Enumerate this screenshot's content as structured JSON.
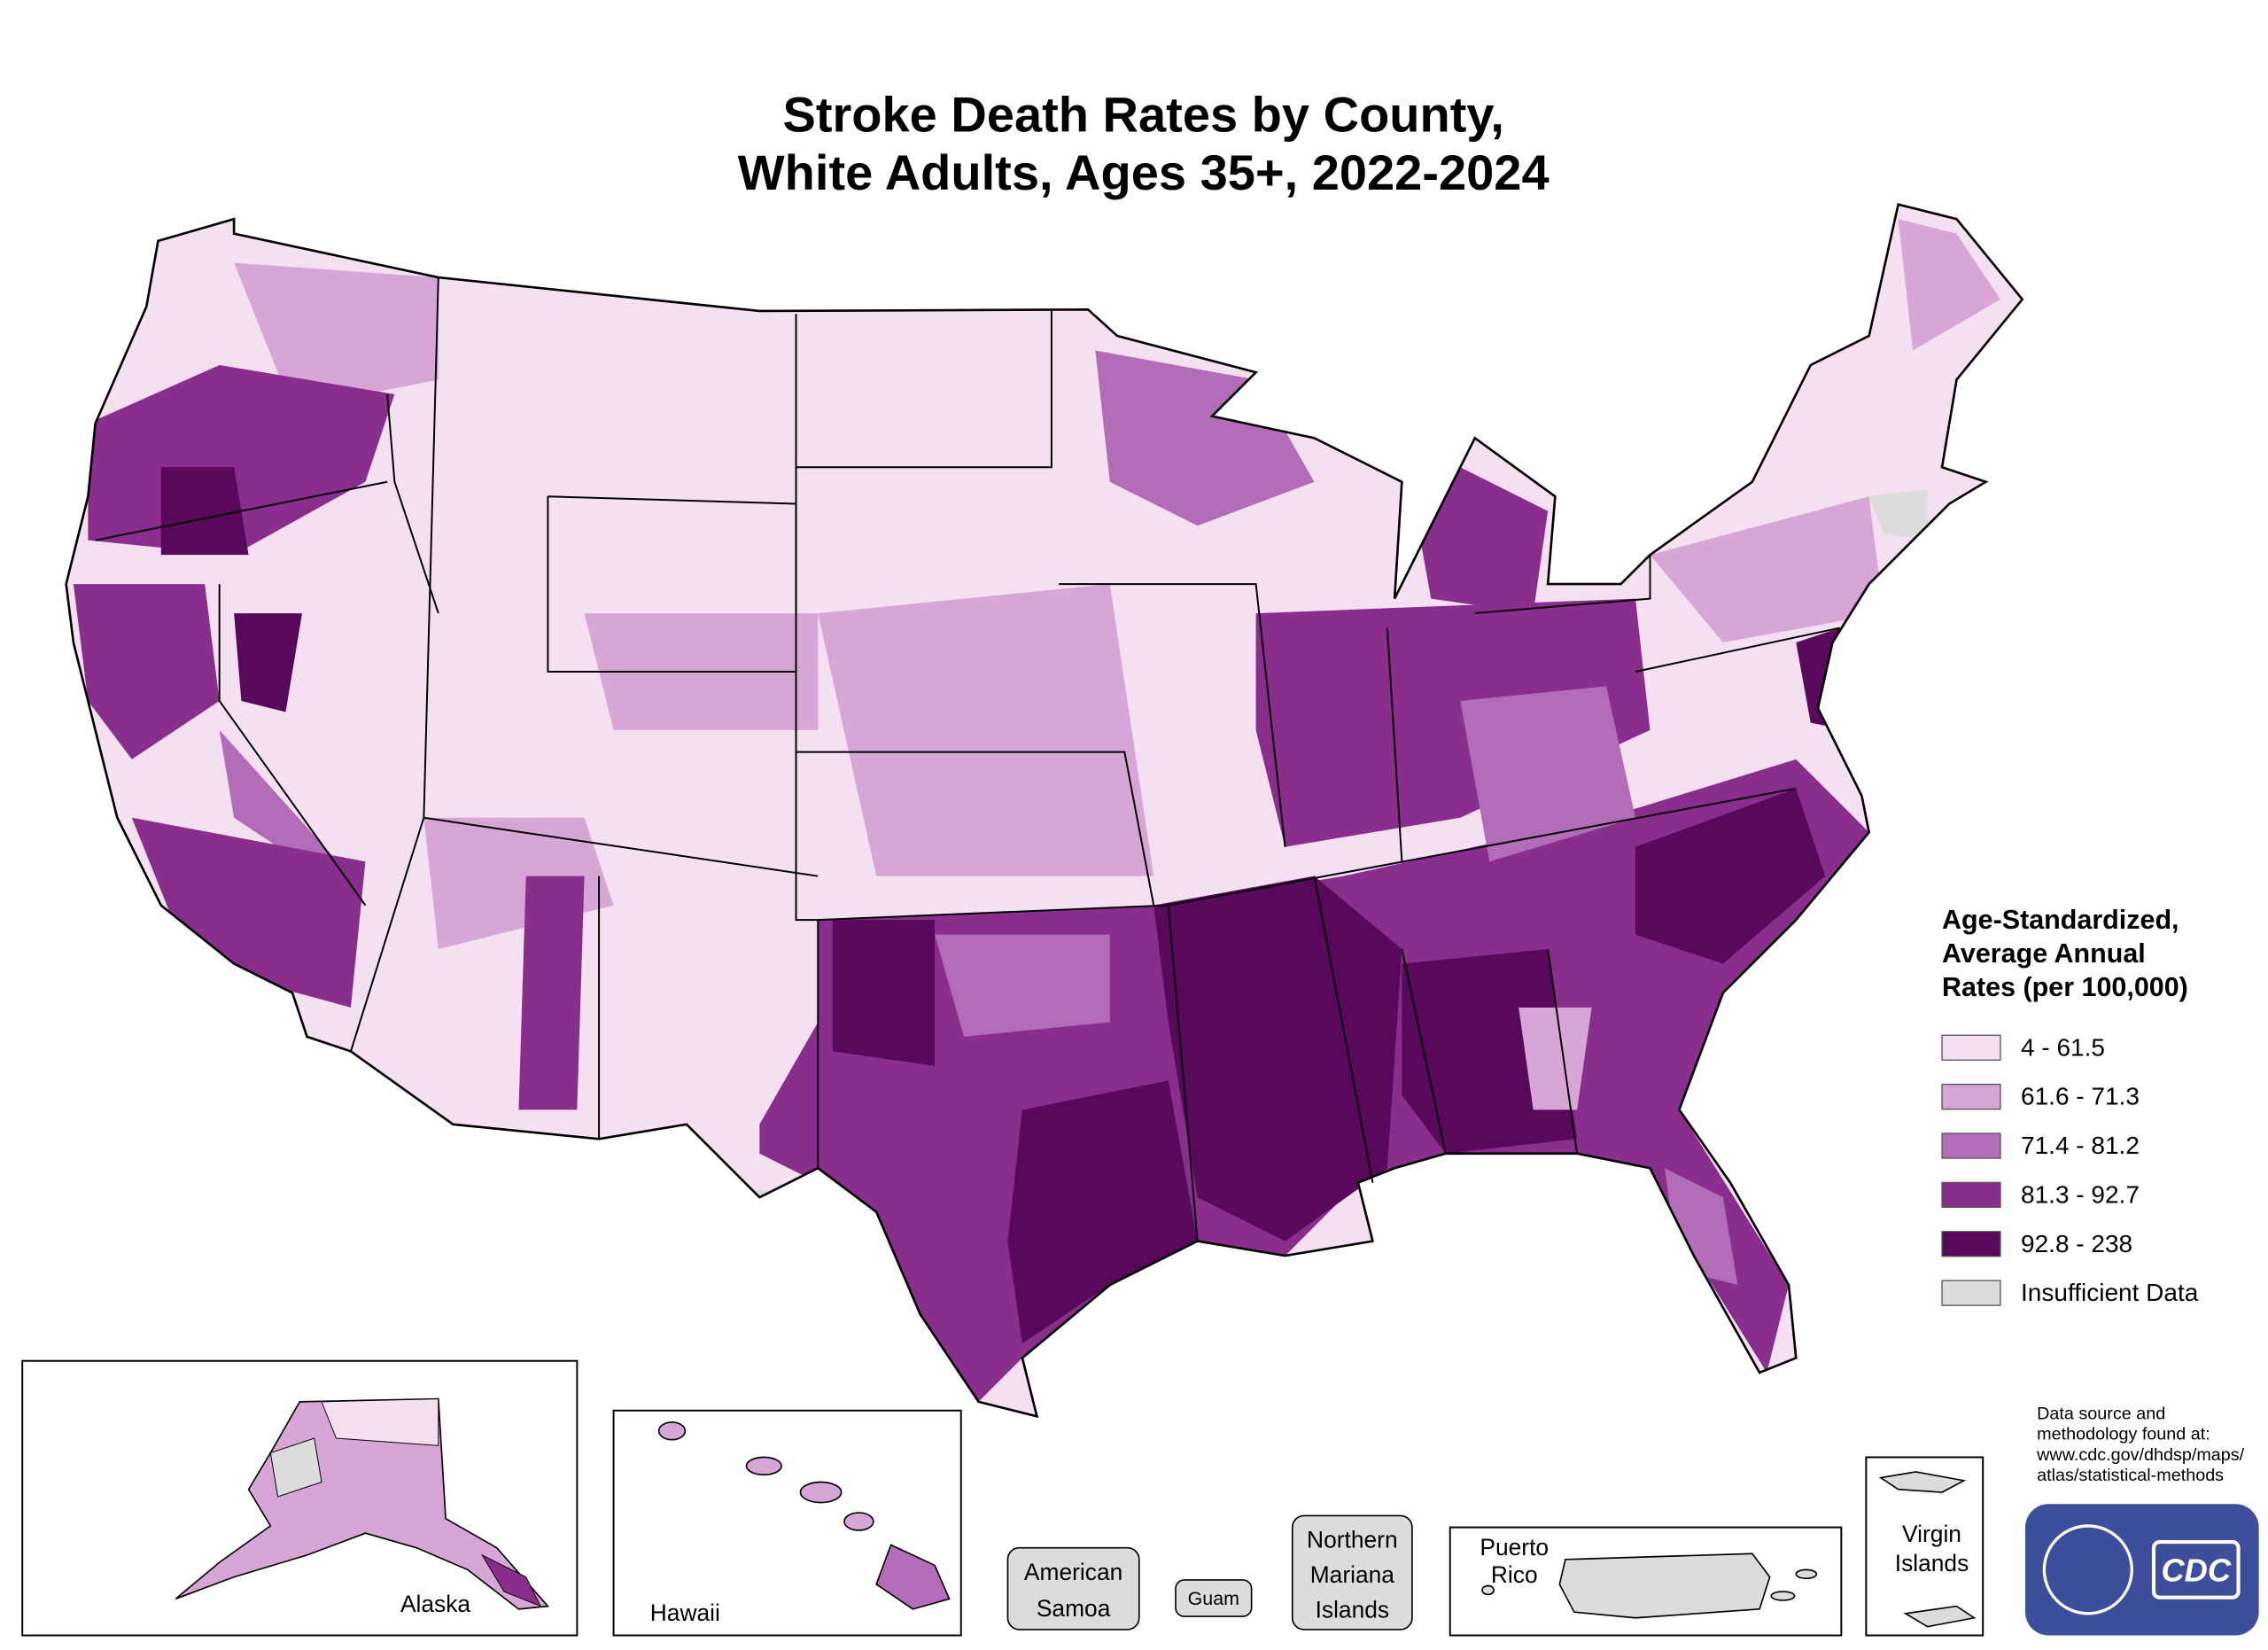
{
  "title": [
    "Stroke Death Rates by County,",
    "White Adults, Ages 35+, 2022-2024"
  ],
  "legend": {
    "title": [
      "Age-Standardized,",
      "Average Annual",
      "Rates (per 100,000)"
    ],
    "items": [
      {
        "label": "4 - 61.5",
        "color": "#f4e0f1"
      },
      {
        "label": "61.6 - 71.3",
        "color": "#d8a6d6"
      },
      {
        "label": "71.4 - 81.2",
        "color": "#b36cb7"
      },
      {
        "label": "81.3 - 92.7",
        "color": "#8a2e8e"
      },
      {
        "label": "92.8 - 238",
        "color": "#58095c"
      },
      {
        "label": "Insufficient Data",
        "color": "#dcdcdc"
      }
    ]
  },
  "insets": {
    "alaska": "Alaska",
    "hawaii": "Hawaii",
    "american_samoa": [
      "American",
      "Samoa"
    ],
    "guam": "Guam",
    "northern_mariana_islands": [
      "Northern",
      "Mariana",
      "Islands"
    ],
    "puerto_rico": [
      "Puerto",
      "Rico"
    ],
    "virgin_islands": [
      "Virgin",
      "Islands"
    ]
  },
  "source": [
    "Data source and",
    "methodology found at:",
    "www.cdc.gov/dhdsp/maps/",
    "atlas/statistical-methods"
  ],
  "logo": "CDC"
}
